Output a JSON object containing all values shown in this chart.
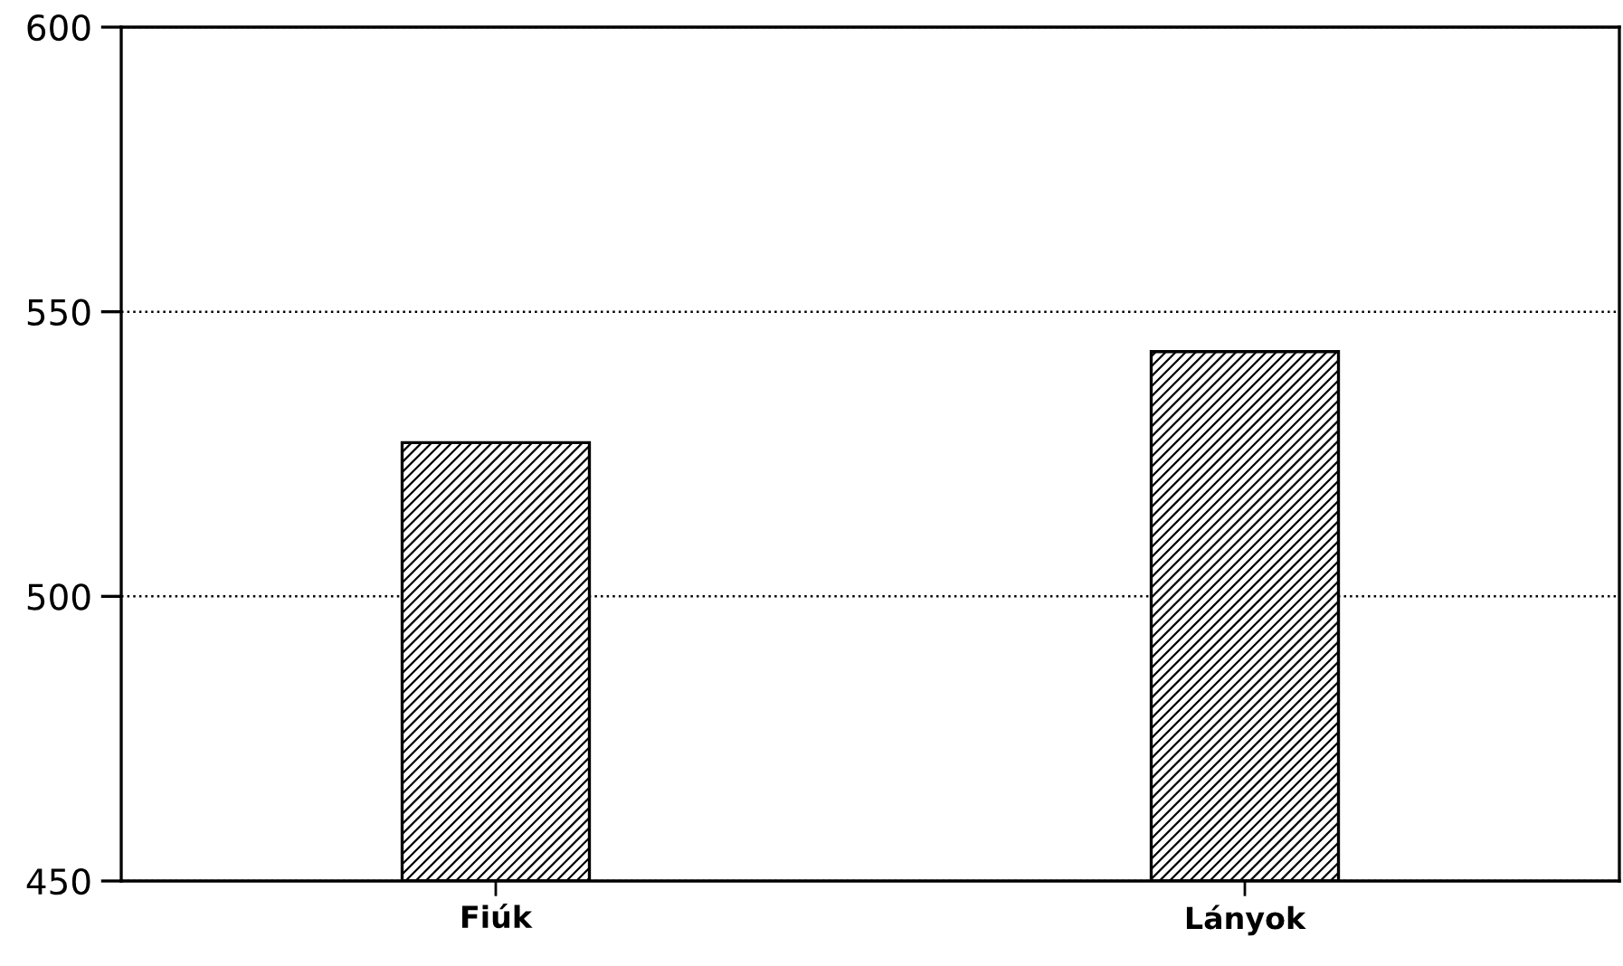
{
  "chart_data": {
    "type": "bar",
    "categories": [
      "Fiúk",
      "Lányok"
    ],
    "values": [
      527,
      543
    ],
    "color": "#000000",
    "ylim": [
      450,
      600
    ],
    "yticks": [
      450,
      500,
      550,
      600
    ],
    "grid": "y",
    "line_style": "dotted"
  }
}
